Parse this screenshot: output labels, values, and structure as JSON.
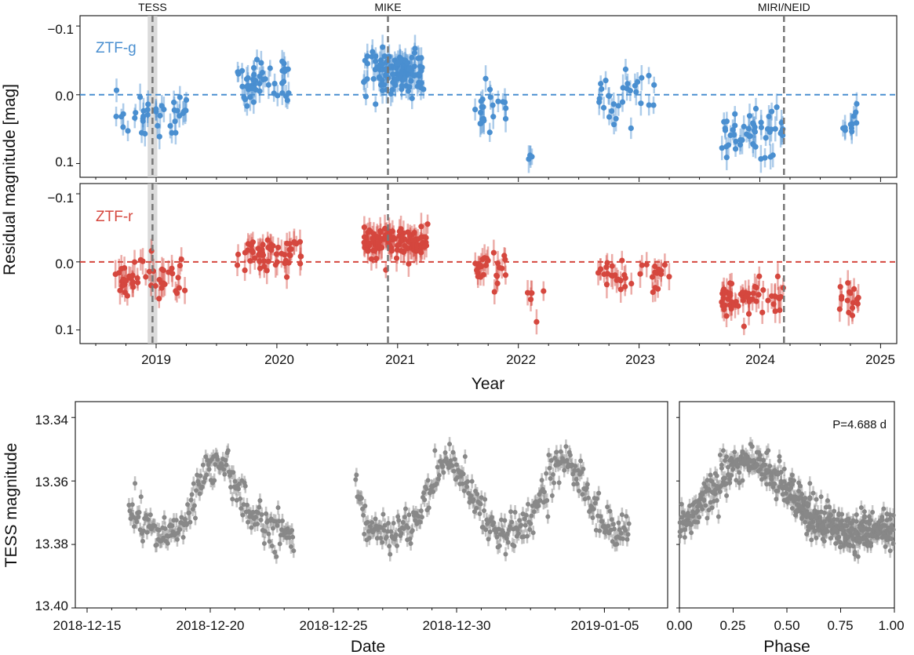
{
  "figure": {
    "ylabel_top": "Residual magnitude [mag]",
    "xlabel_top": "Year",
    "ylabel_tess": "TESS magnitude",
    "xlabel_date": "Date",
    "xlabel_phase": "Phase",
    "period_label": "P=4.688 d"
  },
  "colors": {
    "ztf_g": "#4a8fd0",
    "ztf_r": "#d5473e",
    "tess": "#888888",
    "event_line": "#777777",
    "tess_window": "#cccccc"
  },
  "events": [
    {
      "label": "TESS",
      "year": 18.97
    },
    {
      "label": "MIKE",
      "year": 20.92
    },
    {
      "label": "MIRI/NEID",
      "year": 24.2
    }
  ],
  "chart_data": [
    {
      "id": "ztf-g",
      "type": "scatter",
      "panel_label": "ZTF-g",
      "xlabel": "",
      "ylabel": "Residual magnitude [mag]",
      "xlim": [
        2018.3,
        2025.2
      ],
      "ylim": [
        0.12,
        -0.115
      ],
      "y_inverted": true,
      "y_ticks": [
        -0.1,
        0.0,
        0.1
      ],
      "y_tick_labels": [
        "−0.1",
        "0.0",
        "0.1"
      ],
      "reference_line": 0.0,
      "tess_window": [
        2018.93,
        2019.01
      ],
      "seasons": [
        {
          "start": 2018.66,
          "end": 2019.25,
          "mean": 0.035,
          "spread": 0.025,
          "n": 40
        },
        {
          "start": 2019.67,
          "end": 2020.12,
          "mean": -0.012,
          "spread": 0.028,
          "n": 48
        },
        {
          "start": 2020.72,
          "end": 2021.22,
          "mean": -0.035,
          "spread": 0.028,
          "n": 110
        },
        {
          "start": 2021.64,
          "end": 2021.9,
          "mean": 0.02,
          "spread": 0.028,
          "n": 22
        },
        {
          "start": 2022.05,
          "end": 2022.15,
          "mean": 0.088,
          "spread": 0.01,
          "n": 4
        },
        {
          "start": 2022.66,
          "end": 2023.14,
          "mean": 0.005,
          "spread": 0.026,
          "n": 30
        },
        {
          "start": 2023.68,
          "end": 2024.22,
          "mean": 0.055,
          "spread": 0.025,
          "n": 52
        },
        {
          "start": 2024.66,
          "end": 2024.82,
          "mean": 0.048,
          "spread": 0.02,
          "n": 12
        }
      ]
    },
    {
      "id": "ztf-r",
      "type": "scatter",
      "panel_label": "ZTF-r",
      "xlabel": "Year",
      "ylabel": "Residual magnitude [mag]",
      "xlim": [
        2018.3,
        2025.2
      ],
      "ylim": [
        0.12,
        -0.115
      ],
      "y_inverted": true,
      "y_ticks": [
        -0.1,
        0.0,
        0.1
      ],
      "y_tick_labels": [
        "−0.1",
        "0.0",
        "0.1"
      ],
      "x_ticks": [
        2019,
        2020,
        2021,
        2022,
        2023,
        2024,
        2025
      ],
      "x_tick_labels": [
        "2019",
        "2020",
        "2021",
        "2022",
        "2023",
        "2024",
        "2025"
      ],
      "reference_line": 0.0,
      "tess_window": [
        2018.93,
        2019.01
      ],
      "seasons": [
        {
          "start": 2018.66,
          "end": 2019.25,
          "mean": 0.025,
          "spread": 0.022,
          "n": 48
        },
        {
          "start": 2019.67,
          "end": 2020.2,
          "mean": -0.01,
          "spread": 0.02,
          "n": 60
        },
        {
          "start": 2020.72,
          "end": 2021.25,
          "mean": -0.03,
          "spread": 0.02,
          "n": 120
        },
        {
          "start": 2021.64,
          "end": 2021.9,
          "mean": 0.01,
          "spread": 0.02,
          "n": 26
        },
        {
          "start": 2022.05,
          "end": 2022.22,
          "mean": 0.05,
          "spread": 0.02,
          "n": 6
        },
        {
          "start": 2022.66,
          "end": 2023.25,
          "mean": 0.02,
          "spread": 0.02,
          "n": 36
        },
        {
          "start": 2023.68,
          "end": 2024.2,
          "mean": 0.055,
          "spread": 0.022,
          "n": 56
        },
        {
          "start": 2024.66,
          "end": 2024.82,
          "mean": 0.055,
          "spread": 0.015,
          "n": 16
        }
      ]
    },
    {
      "id": "tess-lightcurve",
      "type": "scatter",
      "xlabel": "Date",
      "ylabel": "TESS magnitude",
      "xlim": [
        -1.0,
        22.3
      ],
      "ylim": [
        13.4,
        13.335
      ],
      "y_inverted": true,
      "x_ticks": [
        0,
        5,
        10,
        15,
        21
      ],
      "x_tick_labels": [
        "2018-12-15",
        "2018-12-20",
        "2018-12-25",
        "2018-12-30",
        "2019-01-05"
      ],
      "y_ticks": [
        13.34,
        13.36,
        13.38,
        13.4
      ],
      "y_tick_labels": [
        "13.34",
        "13.36",
        "13.38",
        "13.40"
      ],
      "period_days": 4.688,
      "mean_mag": 13.367,
      "amplitude_mag": 0.011,
      "segments": [
        [
          1.7,
          8.4
        ],
        [
          10.9,
          22.0
        ]
      ],
      "phase_zero_day": -0.9
    },
    {
      "id": "tess-phased",
      "type": "scatter",
      "xlabel": "Phase",
      "ylabel": "",
      "xlim": [
        0.0,
        1.0
      ],
      "ylim": [
        13.4,
        13.335
      ],
      "y_inverted": true,
      "x_ticks": [
        0,
        0.25,
        0.5,
        0.75,
        1.0
      ],
      "x_tick_labels": [
        "0.00",
        "0.25",
        "0.50",
        "0.75",
        "1.00"
      ],
      "annotation": "P=4.688 d"
    }
  ]
}
